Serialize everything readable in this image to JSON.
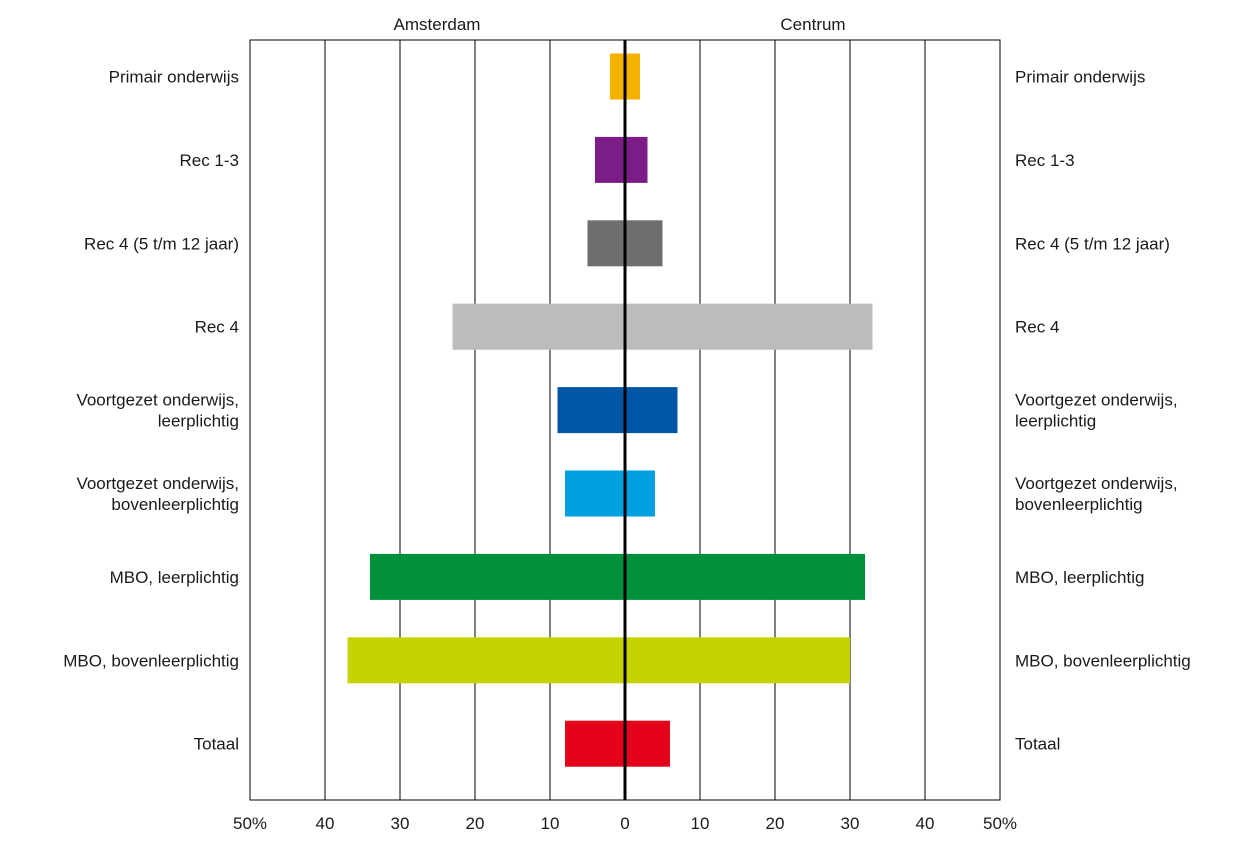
{
  "chart_data": {
    "type": "bar",
    "subtype": "diverging-horizontal-bar",
    "left_header": "Amsterdam",
    "right_header": "Centrum",
    "categories": [
      "Primair onderwijs",
      "Rec 1-3",
      "Rec 4 (5 t/m 12 jaar)",
      "Rec 4",
      "Voortgezet onderwijs, leerplichtig",
      "Voortgezet onderwijs, bovenleerplichtig",
      "MBO, leerplichtig",
      "MBO, bovenleerplichtig",
      "Totaal"
    ],
    "category_lines": [
      [
        "Primair onderwijs"
      ],
      [
        "Rec 1-3"
      ],
      [
        "Rec 4 (5 t/m 12 jaar)"
      ],
      [
        "Rec 4"
      ],
      [
        "Voortgezet onderwijs,",
        "leerplichtig"
      ],
      [
        "Voortgezet onderwijs,",
        "bovenleerplichtig"
      ],
      [
        "MBO, leerplichtig"
      ],
      [
        "MBO, bovenleerplichtig"
      ],
      [
        "Totaal"
      ]
    ],
    "series": [
      {
        "name": "Amsterdam",
        "side": "left",
        "values": [
          2,
          4,
          5,
          23,
          9,
          8,
          34,
          37,
          8
        ]
      },
      {
        "name": "Centrum",
        "side": "right",
        "values": [
          2,
          3,
          5,
          33,
          7,
          4,
          32,
          30,
          6
        ]
      }
    ],
    "colors": [
      "#F4B100",
      "#7B1C87",
      "#6E6E70",
      "#BCBCBE",
      "#0056A4",
      "#009FE0",
      "#00913A",
      "#C5D300",
      "#E2001A"
    ],
    "x_ticks": [
      "50%",
      "40",
      "30",
      "20",
      "10",
      "0",
      "10",
      "20",
      "30",
      "40",
      "50%"
    ],
    "x_tick_values": [
      -50,
      -40,
      -30,
      -20,
      -10,
      0,
      10,
      20,
      30,
      40,
      50
    ],
    "xlim": [
      -50,
      50
    ],
    "grid": true,
    "legend": "none"
  }
}
